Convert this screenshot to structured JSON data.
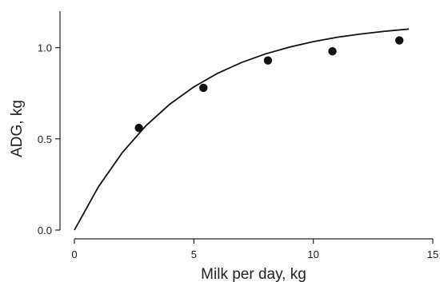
{
  "chart_data": {
    "type": "scatter",
    "title": "",
    "xlabel": "Milk per day, kg",
    "ylabel": "ADG, kg",
    "xlim": [
      0,
      15
    ],
    "ylim": [
      0,
      1.2
    ],
    "xticks": [
      0,
      5,
      10,
      15
    ],
    "xtick_labels": [
      "0",
      "5",
      "10",
      "15"
    ],
    "yticks": [
      0.0,
      0.5,
      1.0
    ],
    "ytick_labels": [
      "0.0",
      "0.5",
      "1.0"
    ],
    "grid": false,
    "legend": "none",
    "series": [
      {
        "kind": "points",
        "x": [
          2.7,
          5.4,
          8.1,
          10.8,
          13.6
        ],
        "y": [
          0.56,
          0.78,
          0.93,
          0.98,
          1.04
        ]
      },
      {
        "kind": "fitted-curve",
        "x": [
          0,
          1,
          2,
          3,
          4,
          5,
          6,
          7,
          8,
          9,
          10,
          11,
          12,
          13,
          14
        ],
        "y": [
          0.0,
          0.236,
          0.424,
          0.573,
          0.691,
          0.785,
          0.86,
          0.919,
          0.966,
          1.003,
          1.033,
          1.057,
          1.075,
          1.09,
          1.102
        ]
      }
    ],
    "colors": {
      "points": "#111111",
      "curve": "#111111",
      "axes": "#222222"
    }
  }
}
